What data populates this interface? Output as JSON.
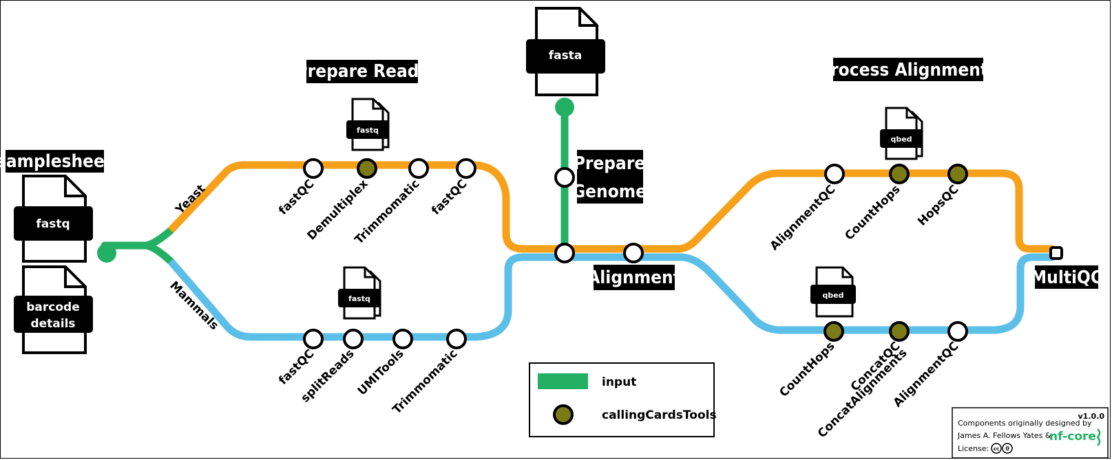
{
  "colors": {
    "yeast_line": "#f7a11a",
    "mammal_line": "#5bbfe8",
    "input_line": "#24b064",
    "tool_fill": "#7b7b16",
    "nfcore_green": "#24b064"
  },
  "sections": {
    "samplesheet": "samplesheet",
    "prepare_reads": "Prepare Reads",
    "prepare_genome_1": "Prepare",
    "prepare_genome_2": "Genome",
    "alignment": "Alignment",
    "process_alignments": "Process Alignments",
    "multiqc": "MultiQC"
  },
  "branches": {
    "yeast": "Yeast",
    "mammals": "Mammals"
  },
  "files": {
    "fastq_input": "fastq",
    "barcode_1": "barcode",
    "barcode_2": "details",
    "fasta": "fasta",
    "fastq_yeast": "fastq",
    "fastq_mammal": "fastq",
    "qbed_yeast": "qbed",
    "qbed_mammal": "qbed"
  },
  "steps": {
    "yeast": [
      "fastQC",
      "Demultiplex",
      "Trimmomatic",
      "fastQC"
    ],
    "mammal": [
      "fastQC",
      "splitReads",
      "UMITools",
      "Trimmomatic"
    ],
    "yeast_process": [
      "AlignmentQC",
      "CountHops",
      "HopsQC"
    ],
    "mammal_process": [
      "CountHops",
      "ConcatQC",
      "ConcatAlignments",
      "AlignmentQC"
    ]
  },
  "legend": {
    "input": "input",
    "tools": "callingCardsTools"
  },
  "credits": {
    "version": "v1.0.0",
    "line1": "Components originally designed by",
    "line2": "James A. Fellows Yates &",
    "nfcore": "nf-core",
    "license": "License:"
  }
}
